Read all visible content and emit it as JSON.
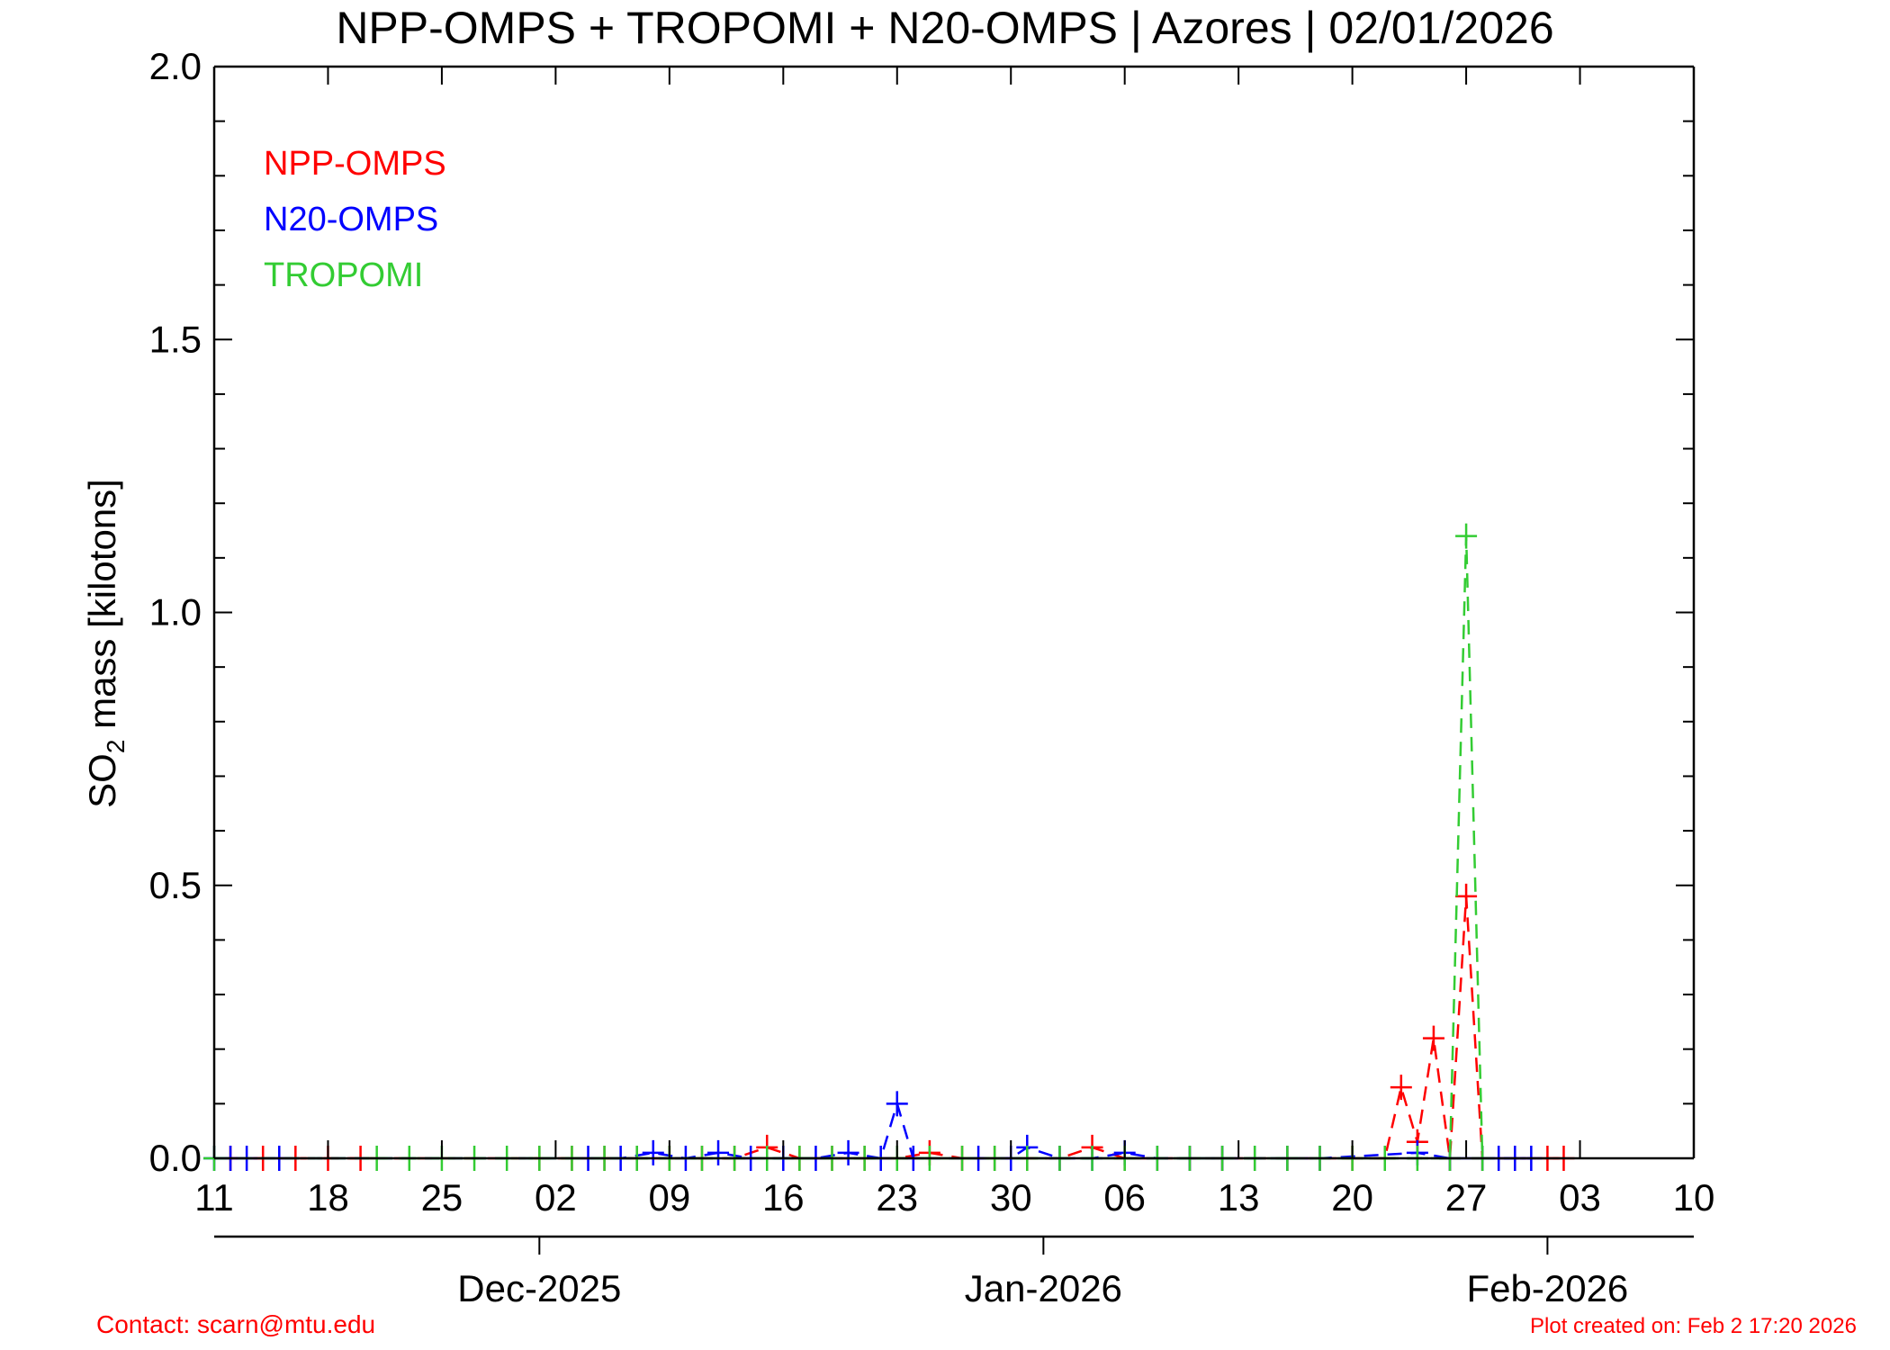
{
  "chart_data": {
    "type": "line",
    "title": "NPP-OMPS + TROPOMI + N20-OMPS | Azores | 02/01/2026",
    "ylabel_prefix": "SO",
    "ylabel_sub": "2",
    "ylabel_suffix": " mass [kilotons]",
    "xlim": [
      "2025-11-11",
      "2026-02-10"
    ],
    "ylim": [
      0,
      2.0
    ],
    "yticks": [
      {
        "value": 0.0,
        "label": "0.0"
      },
      {
        "value": 0.5,
        "label": "0.5"
      },
      {
        "value": 1.0,
        "label": "1.0"
      },
      {
        "value": 1.5,
        "label": "1.5"
      },
      {
        "value": 2.0,
        "label": "2.0"
      }
    ],
    "xticks": [
      {
        "date": "2025-11-11",
        "label": "11"
      },
      {
        "date": "2025-11-18",
        "label": "18"
      },
      {
        "date": "2025-11-25",
        "label": "25"
      },
      {
        "date": "2025-12-02",
        "label": "02"
      },
      {
        "date": "2025-12-09",
        "label": "09"
      },
      {
        "date": "2025-12-16",
        "label": "16"
      },
      {
        "date": "2025-12-23",
        "label": "23"
      },
      {
        "date": "2025-12-30",
        "label": "30"
      },
      {
        "date": "2026-01-06",
        "label": "06"
      },
      {
        "date": "2026-01-13",
        "label": "13"
      },
      {
        "date": "2026-01-20",
        "label": "20"
      },
      {
        "date": "2026-01-27",
        "label": "27"
      },
      {
        "date": "2026-02-03",
        "label": "03"
      },
      {
        "date": "2026-02-10",
        "label": "10"
      }
    ],
    "months": [
      {
        "date": "2025-12-01",
        "label": "Dec-2025"
      },
      {
        "date": "2026-01-01",
        "label": "Jan-2026"
      },
      {
        "date": "2026-02-01",
        "label": "Feb-2026"
      }
    ],
    "legend_position": "top-left",
    "series": [
      {
        "name": "NPP-OMPS",
        "color": "#ff0000",
        "points": [
          [
            "2025-11-12",
            0.0
          ],
          [
            "2025-11-14",
            0.0
          ],
          [
            "2025-11-16",
            0.0
          ],
          [
            "2025-11-18",
            0.0
          ],
          [
            "2025-11-20",
            0.0
          ],
          [
            "2025-12-01",
            0.0
          ],
          [
            "2025-12-03",
            0.0
          ],
          [
            "2025-12-05",
            0.0
          ],
          [
            "2025-12-07",
            0.0
          ],
          [
            "2025-12-09",
            0.0
          ],
          [
            "2025-12-11",
            0.0
          ],
          [
            "2025-12-13",
            0.0
          ],
          [
            "2025-12-15",
            0.02
          ],
          [
            "2025-12-17",
            0.0
          ],
          [
            "2025-12-19",
            0.0
          ],
          [
            "2025-12-21",
            0.0
          ],
          [
            "2025-12-23",
            0.0
          ],
          [
            "2025-12-25",
            0.01
          ],
          [
            "2025-12-27",
            0.0
          ],
          [
            "2025-12-29",
            0.0
          ],
          [
            "2025-12-31",
            0.0
          ],
          [
            "2026-01-02",
            0.0
          ],
          [
            "2026-01-04",
            0.02
          ],
          [
            "2026-01-06",
            0.0
          ],
          [
            "2026-01-08",
            0.0
          ],
          [
            "2026-01-10",
            0.0
          ],
          [
            "2026-01-12",
            0.0
          ],
          [
            "2026-01-14",
            0.0
          ],
          [
            "2026-01-16",
            0.0
          ],
          [
            "2026-01-18",
            0.0
          ],
          [
            "2026-01-20",
            0.0
          ],
          [
            "2026-01-22",
            0.0
          ],
          [
            "2026-01-23",
            0.13
          ],
          [
            "2026-01-24",
            0.03
          ],
          [
            "2026-01-25",
            0.22
          ],
          [
            "2026-01-26",
            0.0
          ],
          [
            "2026-01-27",
            0.48
          ],
          [
            "2026-01-28",
            0.0
          ],
          [
            "2026-01-30",
            0.0
          ],
          [
            "2026-02-01",
            0.0
          ],
          [
            "2026-02-02",
            0.0
          ]
        ]
      },
      {
        "name": "N20-OMPS",
        "color": "#0000ff",
        "points": [
          [
            "2025-11-11",
            0.0
          ],
          [
            "2025-11-12",
            0.0
          ],
          [
            "2025-11-13",
            0.0
          ],
          [
            "2025-11-15",
            0.0
          ],
          [
            "2025-12-04",
            0.0
          ],
          [
            "2025-12-06",
            0.0
          ],
          [
            "2025-12-08",
            0.01
          ],
          [
            "2025-12-10",
            0.0
          ],
          [
            "2025-12-12",
            0.01
          ],
          [
            "2025-12-14",
            0.0
          ],
          [
            "2025-12-16",
            0.0
          ],
          [
            "2025-12-18",
            0.0
          ],
          [
            "2025-12-20",
            0.01
          ],
          [
            "2025-12-22",
            0.0
          ],
          [
            "2025-12-23",
            0.1
          ],
          [
            "2025-12-24",
            0.0
          ],
          [
            "2025-12-28",
            0.0
          ],
          [
            "2025-12-30",
            0.0
          ],
          [
            "2025-12-31",
            0.02
          ],
          [
            "2026-01-02",
            0.0
          ],
          [
            "2026-01-04",
            0.0
          ],
          [
            "2026-01-06",
            0.01
          ],
          [
            "2026-01-08",
            0.0
          ],
          [
            "2026-01-10",
            0.0
          ],
          [
            "2026-01-12",
            0.0
          ],
          [
            "2026-01-14",
            0.0
          ],
          [
            "2026-01-16",
            0.0
          ],
          [
            "2026-01-18",
            0.0
          ],
          [
            "2026-01-24",
            0.01
          ],
          [
            "2026-01-26",
            0.0
          ],
          [
            "2026-01-28",
            0.0
          ],
          [
            "2026-01-29",
            0.0
          ],
          [
            "2026-01-30",
            0.0
          ],
          [
            "2026-01-31",
            0.0
          ]
        ]
      },
      {
        "name": "TROPOMI",
        "color": "#33cc33",
        "points": [
          [
            "2025-11-11",
            0.0
          ],
          [
            "2025-11-21",
            0.0
          ],
          [
            "2025-11-23",
            0.0
          ],
          [
            "2025-11-25",
            0.0
          ],
          [
            "2025-11-27",
            0.0
          ],
          [
            "2025-11-29",
            0.0
          ],
          [
            "2025-12-01",
            0.0
          ],
          [
            "2025-12-03",
            0.0
          ],
          [
            "2025-12-05",
            0.0
          ],
          [
            "2025-12-07",
            0.0
          ],
          [
            "2025-12-09",
            0.0
          ],
          [
            "2025-12-11",
            0.0
          ],
          [
            "2025-12-13",
            0.0
          ],
          [
            "2025-12-15",
            0.0
          ],
          [
            "2025-12-17",
            0.0
          ],
          [
            "2025-12-19",
            0.0
          ],
          [
            "2025-12-21",
            0.0
          ],
          [
            "2025-12-23",
            0.0
          ],
          [
            "2025-12-25",
            0.0
          ],
          [
            "2025-12-27",
            0.0
          ],
          [
            "2025-12-29",
            0.0
          ],
          [
            "2025-12-31",
            0.0
          ],
          [
            "2026-01-02",
            0.0
          ],
          [
            "2026-01-04",
            0.0
          ],
          [
            "2026-01-06",
            0.0
          ],
          [
            "2026-01-08",
            0.0
          ],
          [
            "2026-01-10",
            0.0
          ],
          [
            "2026-01-12",
            0.0
          ],
          [
            "2026-01-14",
            0.0
          ],
          [
            "2026-01-16",
            0.0
          ],
          [
            "2026-01-18",
            0.0
          ],
          [
            "2026-01-20",
            0.0
          ],
          [
            "2026-01-22",
            0.0
          ],
          [
            "2026-01-24",
            0.0
          ],
          [
            "2026-01-26",
            0.0
          ],
          [
            "2026-01-27",
            1.14
          ],
          [
            "2026-01-28",
            0.0
          ]
        ]
      }
    ]
  },
  "footer": {
    "contact": "Contact: scarn@mtu.edu",
    "created": "Plot created on: Feb  2 17:20 2026"
  }
}
